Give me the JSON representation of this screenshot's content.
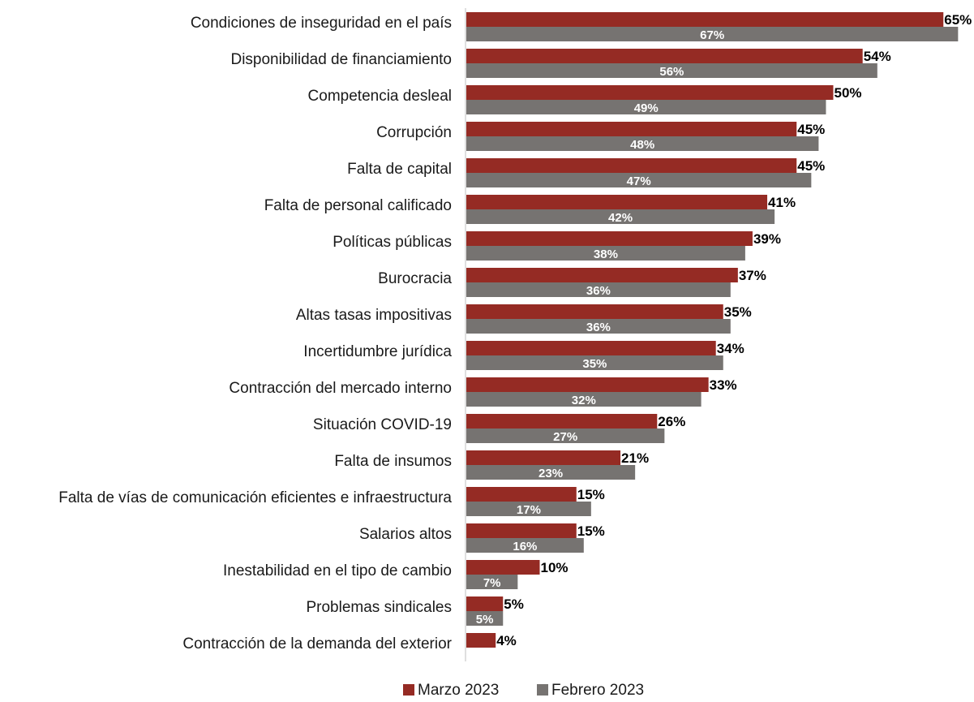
{
  "chart_data": {
    "type": "bar",
    "orientation": "horizontal",
    "categories": [
      "Condiciones de inseguridad en el país",
      "Disponibilidad de financiamiento",
      "Competencia desleal",
      "Corrupción",
      "Falta de capital",
      "Falta de personal calificado",
      "Políticas públicas",
      "Burocracia",
      "Altas tasas impositivas",
      "Incertidumbre jurídica",
      "Contracción del mercado interno",
      "Situación COVID-19",
      "Falta de insumos",
      "Falta de vías de comunicación eficientes e infraestructura",
      "Salarios altos",
      "Inestabilidad en el tipo de cambio",
      "Problemas sindicales",
      "Contracción de la demanda del exterior"
    ],
    "series": [
      {
        "name": "Marzo 2023",
        "color": "#952b24",
        "values": [
          65,
          54,
          50,
          45,
          45,
          41,
          39,
          37,
          35,
          34,
          33,
          26,
          21,
          15,
          15,
          10,
          5,
          4
        ],
        "labels": [
          "65%",
          "54%",
          "50%",
          "45%",
          "45%",
          "41%",
          "39%",
          "37%",
          "35%",
          "34%",
          "33%",
          "26%",
          "21%",
          "15%",
          "15%",
          "10%",
          "5%",
          "4%"
        ]
      },
      {
        "name": "Febrero 2023",
        "color": "#767371",
        "values": [
          67,
          56,
          49,
          48,
          47,
          42,
          38,
          36,
          36,
          35,
          32,
          27,
          23,
          17,
          16,
          7,
          5,
          null
        ],
        "labels": [
          "67%",
          "56%",
          "49%",
          "48%",
          "47%",
          "42%",
          "38%",
          "36%",
          "36%",
          "35%",
          "32%",
          "27%",
          "23%",
          "17%",
          "16%",
          "7%",
          "5%",
          ""
        ]
      }
    ],
    "xlim": [
      0,
      68
    ],
    "unit": "%",
    "grid": false,
    "legend": "bottom-center",
    "title": "",
    "xlabel": "",
    "ylabel": ""
  }
}
